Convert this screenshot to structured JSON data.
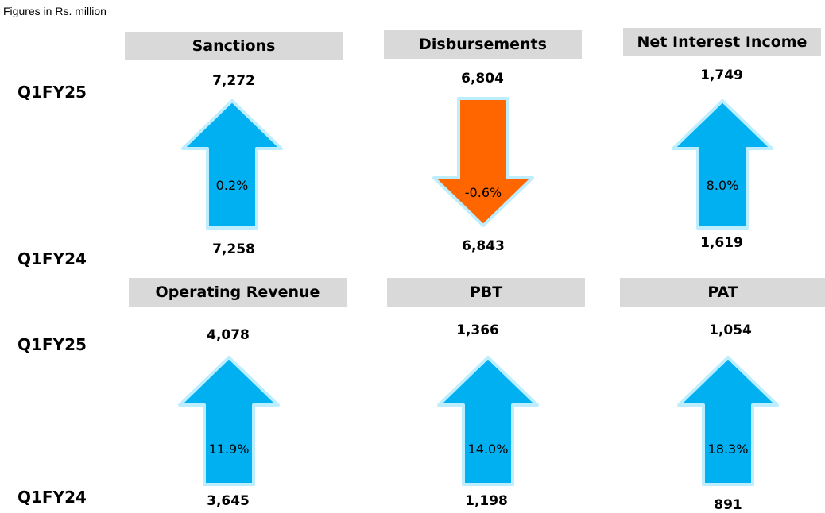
{
  "note": "Figures in Rs. million",
  "row_labels": {
    "current": "Q1FY25",
    "previous": "Q1FY24"
  },
  "colors": {
    "up": "#00b0f0",
    "down": "#ff6600",
    "glow": "#bdeeff",
    "header_bg": "#d9d9d9"
  },
  "metrics": [
    {
      "title": "Sanctions",
      "current": "7,272",
      "previous": "7,258",
      "change": "0.2%",
      "direction": "up"
    },
    {
      "title": "Disbursements",
      "current": "6,804",
      "previous": "6,843",
      "change": "-0.6%",
      "direction": "down"
    },
    {
      "title": "Net Interest Income",
      "current": "1,749",
      "previous": "1,619",
      "change": "8.0%",
      "direction": "up"
    },
    {
      "title": "Operating Revenue",
      "current": "4,078",
      "previous": "3,645",
      "change": "11.9%",
      "direction": "up"
    },
    {
      "title": "PBT",
      "current": "1,366",
      "previous": "1,198",
      "change": "14.0%",
      "direction": "up"
    },
    {
      "title": "PAT",
      "current": "1,054",
      "previous": "891",
      "change": "18.3%",
      "direction": "up"
    }
  ]
}
